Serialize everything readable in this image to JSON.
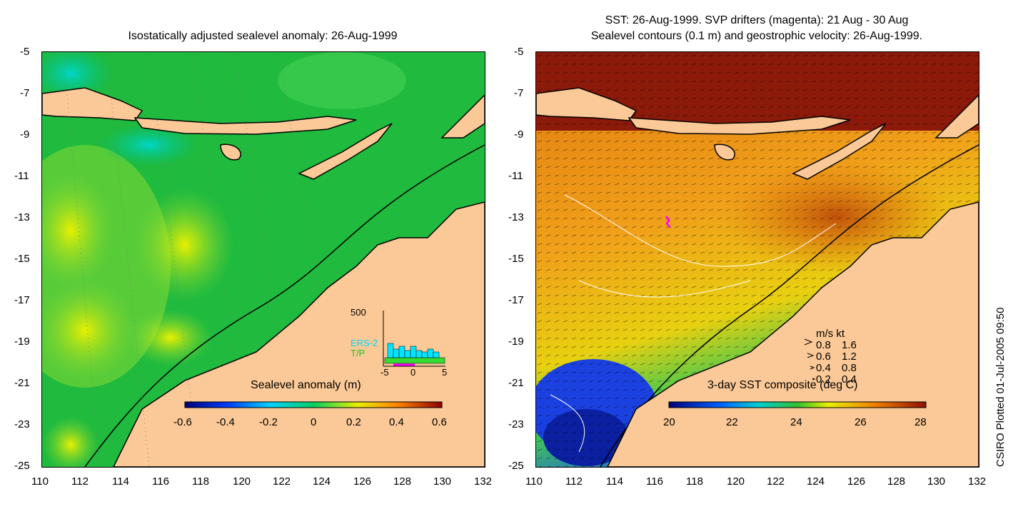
{
  "left_panel": {
    "title": "Isostatically adjusted sealevel anomaly: 26-Aug-1999",
    "colorbar_label": "Sealevel anomaly (m)",
    "colorbar_ticks": [
      "-0.6",
      "-0.4",
      "-0.2",
      "0",
      "0.2",
      "0.4",
      "0.6"
    ],
    "histogram": {
      "ymax_label": "500",
      "series_labels": [
        "ERS-2",
        "T/P"
      ],
      "xticks": [
        "-5",
        "0",
        "5"
      ],
      "colors": {
        "ers2": "#00e5ff",
        "tp": "#33dd33"
      }
    }
  },
  "right_panel": {
    "title_line1": "SST: 26-Aug-1999. SVP drifters (magenta): 21 Aug - 30 Aug",
    "title_line2": "Sealevel contours (0.1 m) and geostrophic velocity: 26-Aug-1999.",
    "colorbar_label": "3-day SST composite (deg C)",
    "colorbar_ticks": [
      "20",
      "22",
      "24",
      "26",
      "28"
    ],
    "velocity_legend": {
      "header": "m/s  kt",
      "rows": [
        {
          "ms": "0.8",
          "kt": "1.6"
        },
        {
          "ms": "0.6",
          "kt": "1.2"
        },
        {
          "ms": "0.4",
          "kt": "0.8"
        },
        {
          "ms": "0.2",
          "kt": "0.4"
        }
      ]
    }
  },
  "axes": {
    "lat_ticks": [
      "-5",
      "-7",
      "-9",
      "-11",
      "-13",
      "-15",
      "-17",
      "-19",
      "-21",
      "-23",
      "-25"
    ],
    "lon_ticks": [
      "110",
      "112",
      "114",
      "116",
      "118",
      "120",
      "122",
      "124",
      "126",
      "128",
      "130",
      "132"
    ],
    "lat_range": [
      -25,
      -5
    ],
    "lon_range": [
      110,
      132
    ]
  },
  "credit": "CSIRO Plotted 01-Jul-2005 09:50",
  "colors": {
    "land": "#fbc997",
    "anomaly_base": "#22c04a",
    "sst_warm": "#e07a10",
    "sst_hot": "#8b1a0a"
  }
}
